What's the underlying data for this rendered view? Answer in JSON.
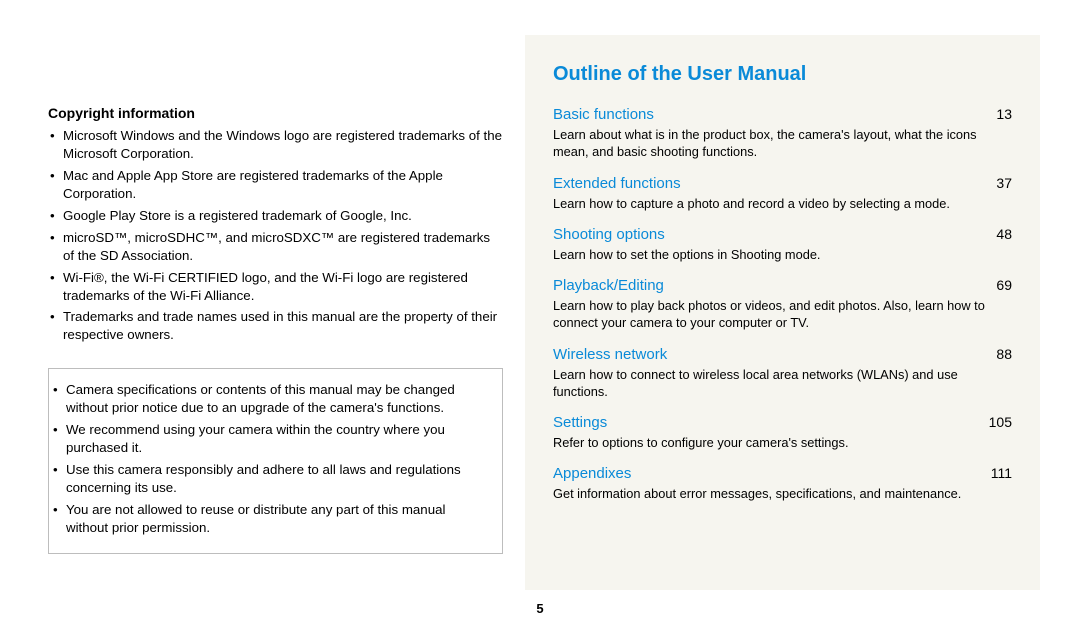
{
  "colors": {
    "accent": "#0a8ad8",
    "text": "#000000",
    "right_bg": "#f6f5ef",
    "box_border": "#bdbdbd",
    "page_bg": "#ffffff"
  },
  "typography": {
    "body_fontsize": 13.3,
    "heading_fontsize": 20,
    "section_title_fontsize": 15
  },
  "left": {
    "copyright_heading": "Copyright information",
    "trademark_items": [
      "Microsoft Windows and the Windows logo are registered trademarks of the Microsoft Corporation.",
      "Mac and Apple App Store are registered trademarks of the Apple Corporation.",
      "Google Play Store is a registered trademark of Google, Inc.",
      "microSD™, microSDHC™, and microSDXC™ are registered trademarks of the SD Association.",
      "Wi-Fi®, the Wi-Fi CERTIFIED logo, and the Wi-Fi logo are registered trademarks of the Wi-Fi Alliance.",
      "Trademarks and trade names used in this manual are the property of their respective owners."
    ],
    "notice_items": [
      "Camera specifications or contents of this manual may be changed without prior notice due to an upgrade of the camera's functions.",
      "We recommend using your camera within the country where you purchased it.",
      "Use this camera responsibly and adhere to all laws and regulations concerning its use.",
      "You are not allowed to reuse or distribute any part of this manual without prior permission."
    ]
  },
  "right": {
    "title": "Outline of the User Manual",
    "sections": [
      {
        "title": "Basic functions",
        "page": "13",
        "desc": "Learn about what is in the product box, the camera's layout, what the icons mean, and basic shooting functions."
      },
      {
        "title": "Extended functions",
        "page": "37",
        "desc": "Learn how to capture a photo and record a video by selecting a mode."
      },
      {
        "title": "Shooting options",
        "page": "48",
        "desc": "Learn how to set the options in Shooting mode."
      },
      {
        "title": "Playback/Editing",
        "page": "69",
        "desc": "Learn how to play back photos or videos, and edit photos. Also, learn how to connect your camera to your computer or TV."
      },
      {
        "title": "Wireless network",
        "page": "88",
        "desc": "Learn how to connect to wireless local area networks (WLANs) and use functions."
      },
      {
        "title": "Settings",
        "page": "105",
        "desc": "Refer to options to configure your camera's settings."
      },
      {
        "title": "Appendixes",
        "page": "111",
        "desc": "Get information about error messages, specifications, and maintenance."
      }
    ]
  },
  "page_number": "5"
}
